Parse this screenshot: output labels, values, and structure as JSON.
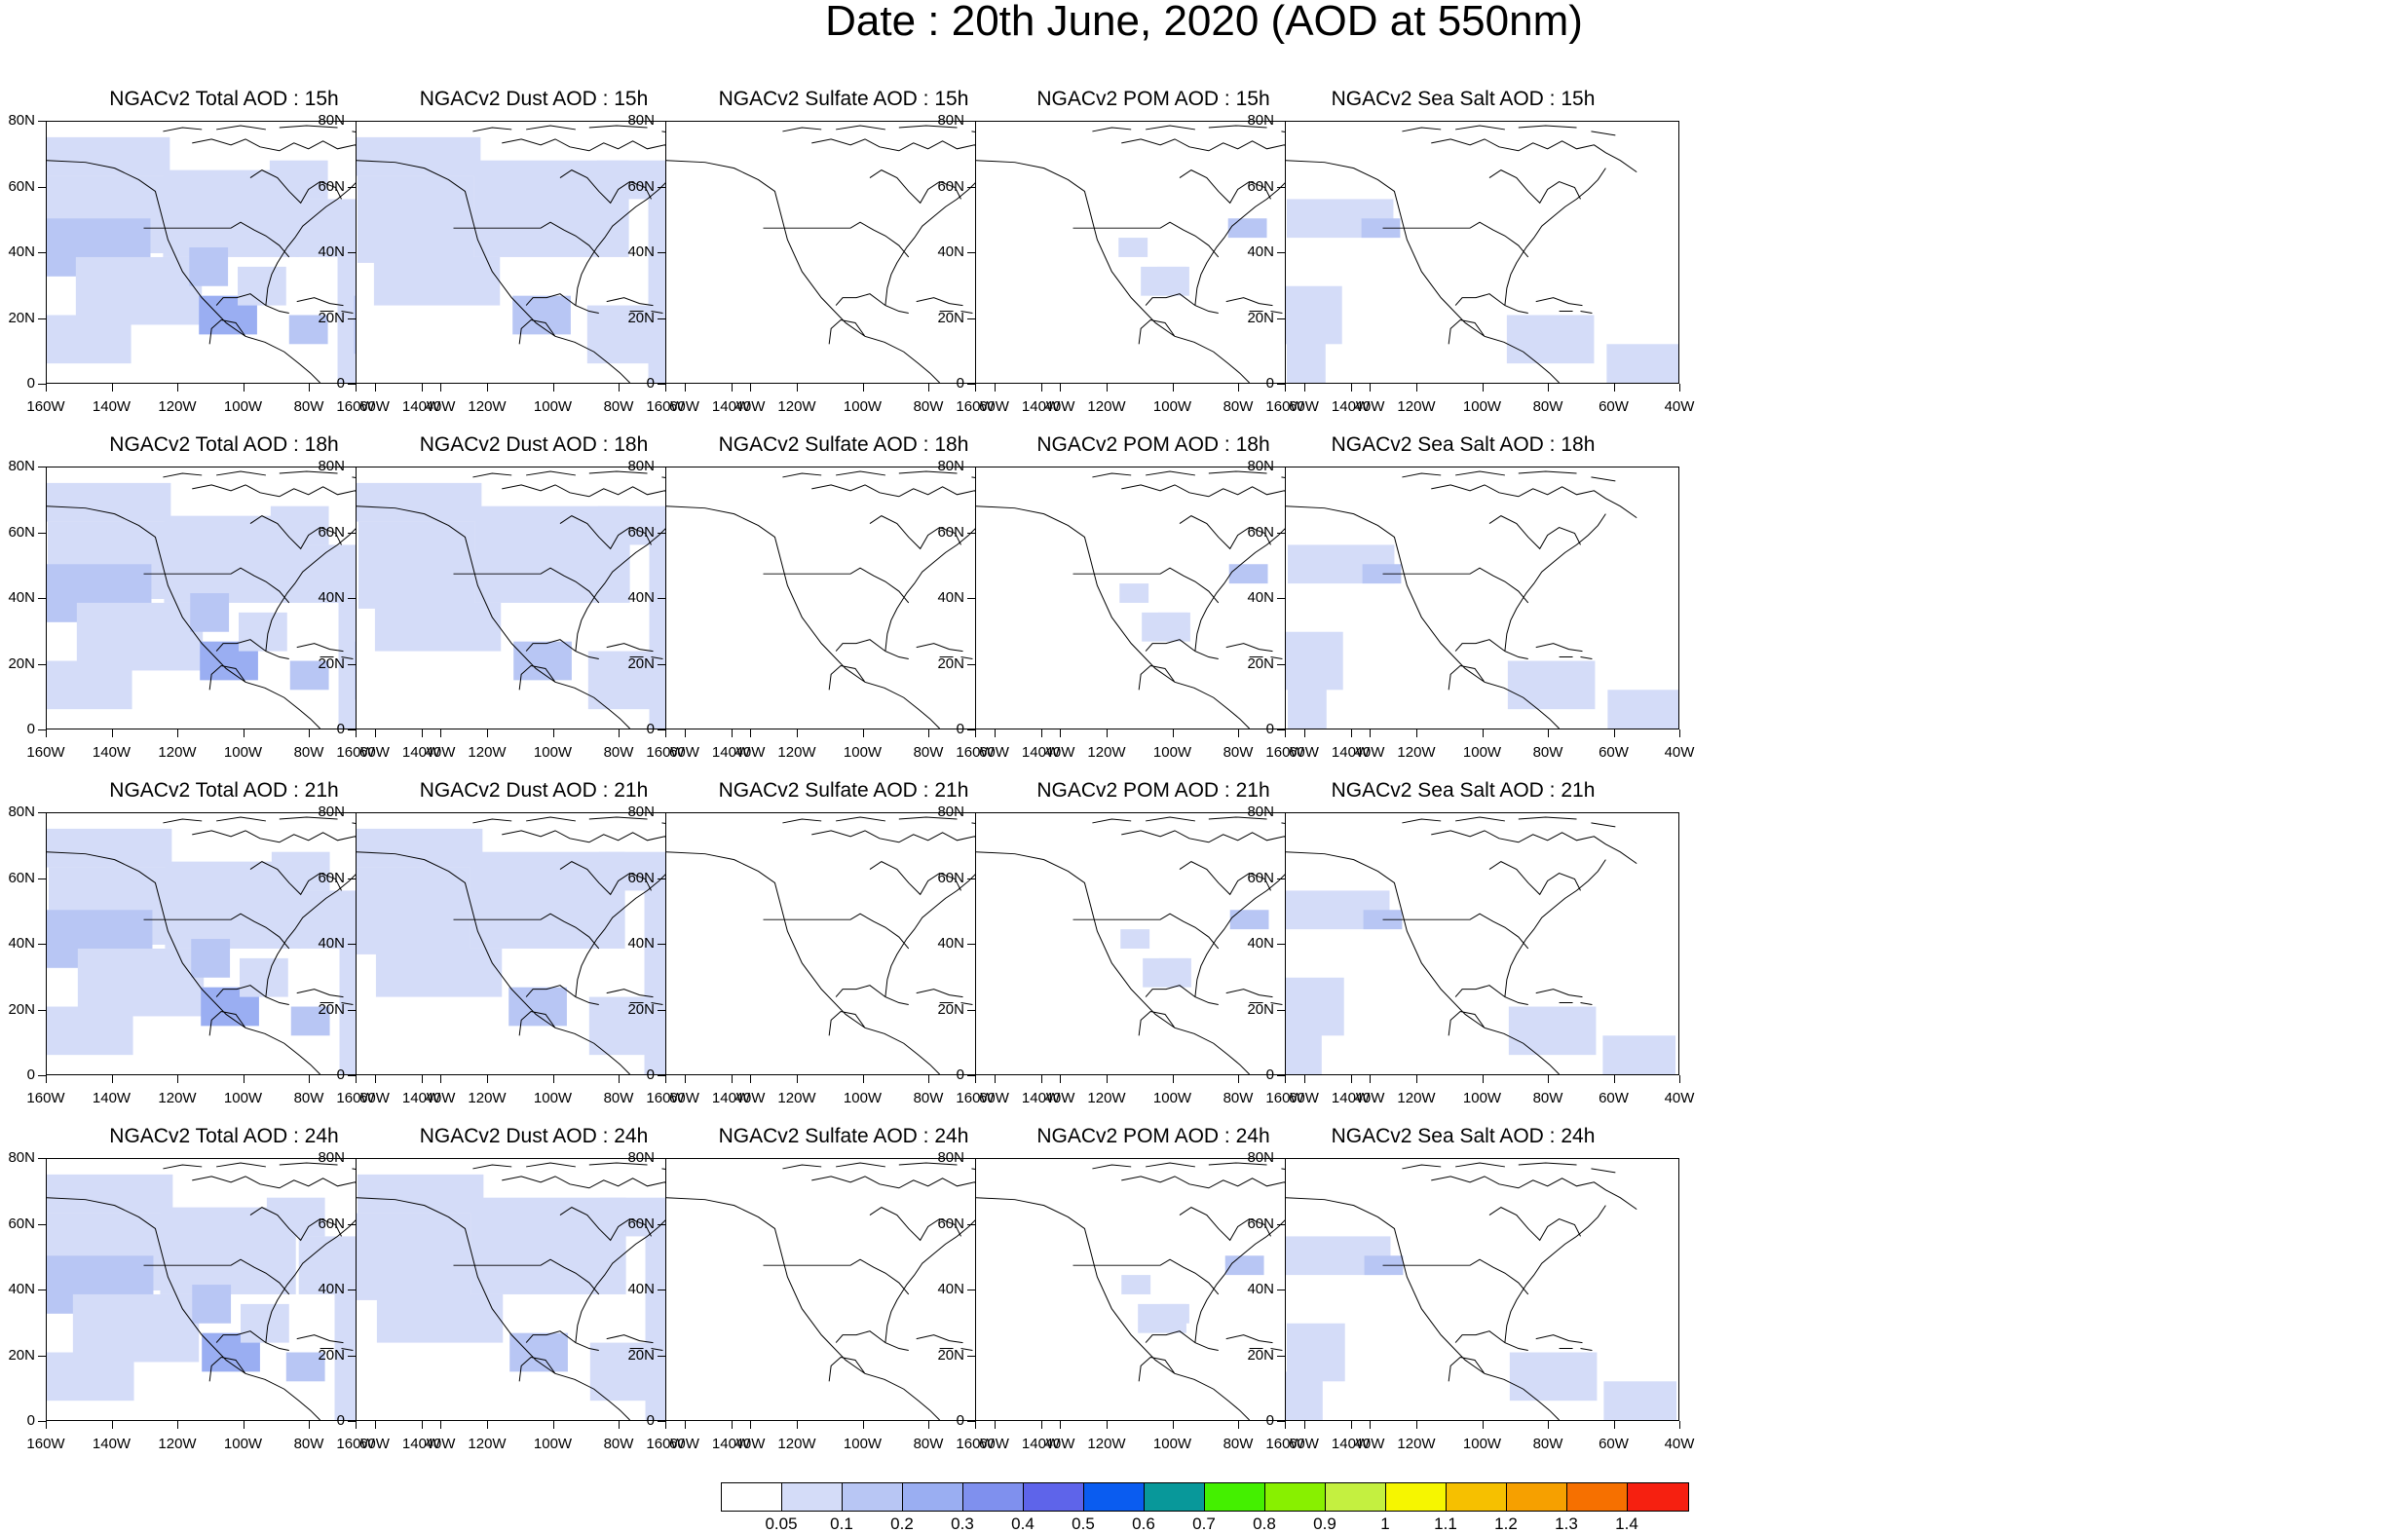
{
  "title": "Date : 20th June, 2020 (AOD at 550nm)",
  "lat_labels": [
    "80N",
    "60N",
    "40N",
    "20N",
    "0"
  ],
  "lon_labels": [
    "160W",
    "140W",
    "120W",
    "100W",
    "80W",
    "60W",
    "40W"
  ],
  "panels": [
    [
      "NGACv2 Total AOD : 15h",
      "NGACv2 Dust AOD : 15h",
      "NGACv2 Sulfate AOD : 15h",
      "NGACv2 POM AOD : 15h",
      "NGACv2 Sea Salt AOD : 15h"
    ],
    [
      "NGACv2 Total AOD : 18h",
      "NGACv2 Dust AOD : 18h",
      "NGACv2 Sulfate AOD : 18h",
      "NGACv2 POM AOD : 18h",
      "NGACv2 Sea Salt AOD : 18h"
    ],
    [
      "NGACv2 Total AOD : 21h",
      "NGACv2 Dust AOD : 21h",
      "NGACv2 Sulfate AOD : 21h",
      "NGACv2 POM AOD : 21h",
      "NGACv2 Sea Salt AOD : 21h"
    ],
    [
      "NGACv2 Total AOD : 24h",
      "NGACv2 Dust AOD : 24h",
      "NGACv2 Sulfate AOD : 24h",
      "NGACv2 POM AOD : 24h",
      "NGACv2 Sea Salt  AOD : 24h"
    ]
  ],
  "colorbar": {
    "labels": [
      "0.05",
      "0.1",
      "0.2",
      "0.3",
      "0.4",
      "0.5",
      "0.6",
      "0.7",
      "0.8",
      "0.9",
      "1",
      "1.1",
      "1.2",
      "1.3",
      "1.4"
    ],
    "colors": [
      "#ffffff",
      "#d4dcf8",
      "#b8c6f4",
      "#9aaef2",
      "#7f90ee",
      "#5e64ea",
      "#0a5cf0",
      "#08989a",
      "#44f000",
      "#88f000",
      "#c4f040",
      "#f6f600",
      "#f6c000",
      "#f6a000",
      "#f67000",
      "#f62010"
    ]
  }
}
